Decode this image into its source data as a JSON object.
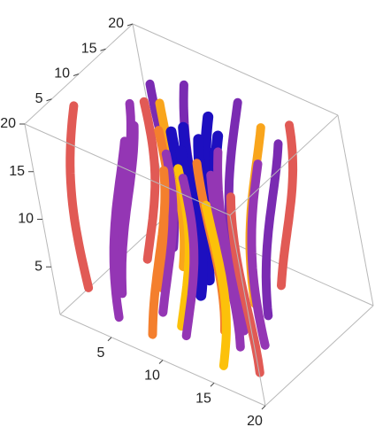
{
  "chart_data": {
    "type": "3d-tube-plot",
    "x_range": [
      0,
      20
    ],
    "y_range": [
      0,
      20
    ],
    "z_range": [
      0,
      20
    ],
    "x_ticks": [
      "5",
      "10",
      "15",
      "20"
    ],
    "y_ticks": [
      "5",
      "10",
      "15",
      "20"
    ],
    "z_ticks": [
      "5",
      "10",
      "15",
      "20"
    ],
    "boxed": true,
    "grid": false,
    "color_function": "plasma (dark blue → purple → orange → yellow)",
    "colors": {
      "blue": "#1d0fc0",
      "violet": "#7a2bb2",
      "purple": "#9436b4",
      "coral": "#e15a55",
      "orange": "#f47f2d",
      "amber": "#f9a51c",
      "yellow": "#fcc10a"
    },
    "tubes": [
      {
        "x0": 4,
        "y0": 12,
        "z0": 0,
        "z1": 20,
        "color": "coral"
      },
      {
        "x0": 1,
        "y0": 6,
        "z0": 0,
        "z1": 20,
        "color": "coral"
      },
      {
        "x0": 18,
        "y0": 4,
        "z0": 0,
        "z1": 20,
        "color": "coral"
      },
      {
        "x0": 15,
        "y0": 17,
        "z0": 0,
        "z1": 20,
        "color": "coral"
      },
      {
        "x0": 5,
        "y0": 7,
        "z0": 0,
        "z1": 20,
        "color": "purple"
      },
      {
        "x0": 6,
        "y0": 4,
        "z0": 0,
        "z1": 20,
        "color": "purple"
      },
      {
        "x0": 9,
        "y0": 6,
        "z0": 0,
        "z1": 20,
        "color": "purple"
      },
      {
        "x0": 12,
        "y0": 4,
        "z0": 0,
        "z1": 20,
        "color": "purple"
      },
      {
        "x0": 15,
        "y0": 6,
        "z0": 0,
        "z1": 20,
        "color": "purple"
      },
      {
        "x0": 14,
        "y0": 9,
        "z0": 0,
        "z1": 20,
        "color": "purple"
      },
      {
        "x0": 4,
        "y0": 15,
        "z0": 0,
        "z1": 20,
        "color": "violet"
      },
      {
        "x0": 7,
        "y0": 16,
        "z0": 0,
        "z1": 20,
        "color": "violet"
      },
      {
        "x0": 16,
        "y0": 13,
        "z0": 0,
        "z1": 20,
        "color": "violet"
      },
      {
        "x0": 11,
        "y0": 16,
        "z0": 0,
        "z1": 20,
        "color": "violet"
      },
      {
        "x0": 3,
        "y0": 10,
        "z0": 0,
        "z1": 20,
        "color": "purple"
      },
      {
        "x0": 17,
        "y0": 9,
        "z0": 0,
        "z1": 20,
        "color": "purple"
      },
      {
        "x0": 8,
        "y0": 11,
        "z0": 1,
        "z1": 19,
        "color": "blue"
      },
      {
        "x0": 9,
        "y0": 12,
        "z0": 1,
        "z1": 19,
        "color": "blue"
      },
      {
        "x0": 11,
        "y0": 11,
        "z0": 1,
        "z1": 19,
        "color": "blue"
      },
      {
        "x0": 12,
        "y0": 12,
        "z0": 1,
        "z1": 19,
        "color": "blue"
      },
      {
        "x0": 10,
        "y0": 9,
        "z0": 1,
        "z1": 19,
        "color": "blue"
      },
      {
        "x0": 13,
        "y0": 10,
        "z0": 1,
        "z1": 19,
        "color": "blue"
      },
      {
        "x0": 10,
        "y0": 14,
        "z0": 1,
        "z1": 19,
        "color": "blue"
      },
      {
        "x0": 7,
        "y0": 9,
        "z0": 0,
        "z1": 20,
        "color": "orange"
      },
      {
        "x0": 13,
        "y0": 7,
        "z0": 0,
        "z1": 20,
        "color": "orange"
      },
      {
        "x0": 10,
        "y0": 3,
        "z0": 0,
        "z1": 20,
        "color": "orange"
      },
      {
        "x0": 6,
        "y0": 13,
        "z0": 0,
        "z1": 20,
        "color": "amber"
      },
      {
        "x0": 14,
        "y0": 14,
        "z0": 0,
        "z1": 20,
        "color": "amber"
      },
      {
        "x0": 11,
        "y0": 5,
        "z0": 0,
        "z1": 20,
        "color": "yellow"
      },
      {
        "x0": 16,
        "y0": 2,
        "z0": 0,
        "z1": 20,
        "color": "yellow"
      }
    ]
  }
}
